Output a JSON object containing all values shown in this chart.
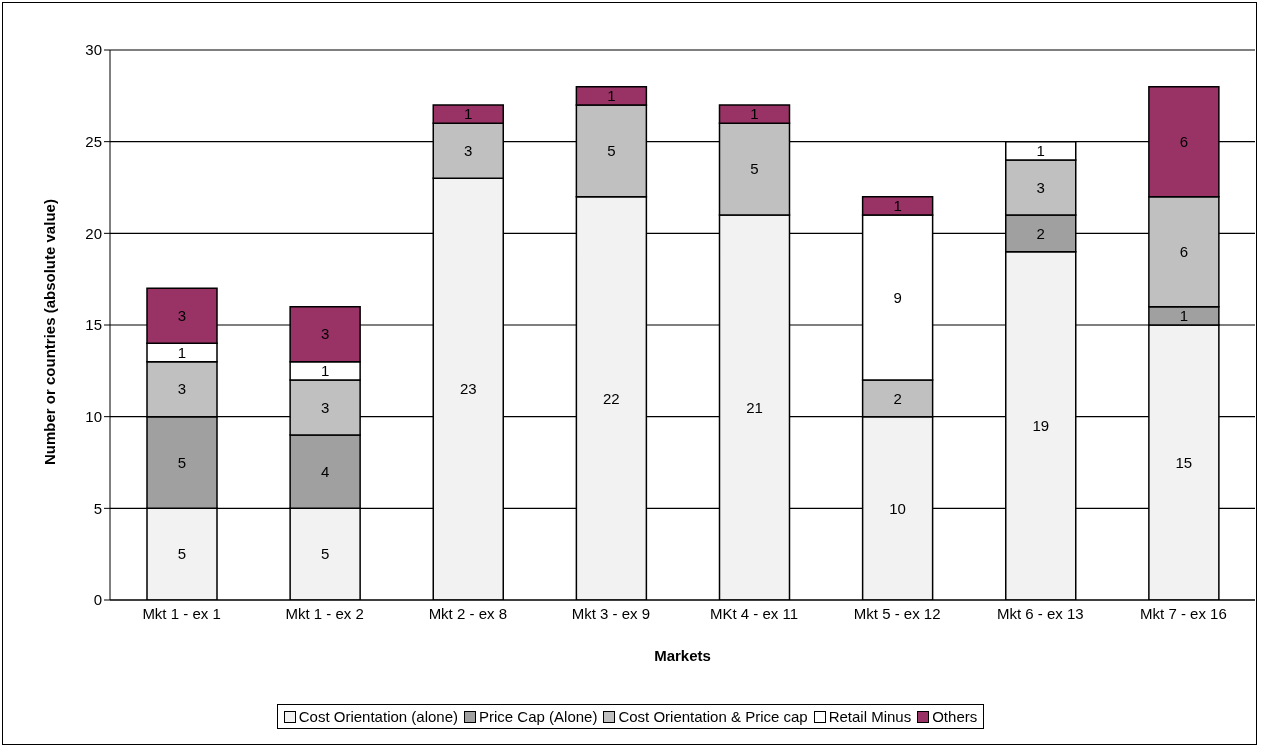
{
  "chart_data": {
    "type": "bar",
    "stacked": true,
    "xlabel": "Markets",
    "ylabel": "Number or countries (absolute value)",
    "categories": [
      "Mkt 1 - ex 1",
      "Mkt 1 - ex 2",
      "Mkt 2 - ex 8",
      "Mkt 3 - ex 9",
      "MKt 4 - ex 11",
      "Mkt 5 - ex 12",
      "Mkt 6 - ex 13",
      "Mkt 7 - ex 16"
    ],
    "series": [
      {
        "name": "Cost Orientation (alone)",
        "color": "#f2f2f2",
        "values": [
          5,
          5,
          23,
          22,
          21,
          10,
          19,
          15
        ]
      },
      {
        "name": "Price Cap (Alone)",
        "color": "#a0a0a0",
        "values": [
          5,
          4,
          null,
          null,
          null,
          null,
          2,
          1
        ]
      },
      {
        "name": "Cost Orientation & Price cap",
        "color": "#c0c0c0",
        "values": [
          3,
          3,
          3,
          5,
          5,
          2,
          3,
          6
        ]
      },
      {
        "name": "Retail Minus",
        "color": "#ffffff",
        "values": [
          1,
          1,
          null,
          null,
          null,
          9,
          1,
          null
        ]
      },
      {
        "name": "Others",
        "color": "#993366",
        "values": [
          3,
          3,
          1,
          1,
          1,
          1,
          null,
          6
        ]
      }
    ],
    "ylim": [
      0,
      30
    ],
    "yticks": [
      0,
      5,
      10,
      15,
      20,
      25,
      30
    ],
    "grid": "y",
    "legend": "bottom",
    "data_labels": true
  }
}
